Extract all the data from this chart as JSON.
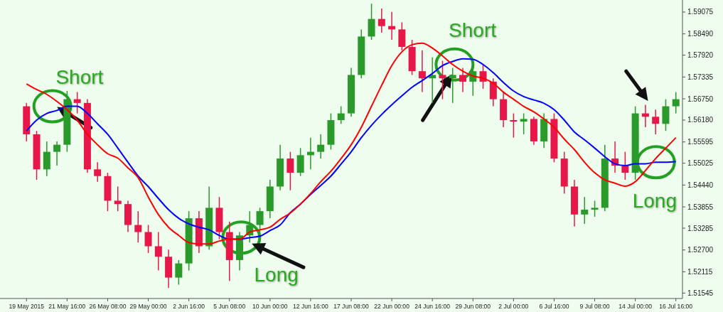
{
  "chart_data": {
    "type": "candlestick",
    "categories": [
      "19 May 2015",
      null,
      null,
      null,
      "21 May 16:00",
      null,
      null,
      null,
      "26 May 08:00",
      null,
      null,
      null,
      "29 May 00:00",
      null,
      null,
      null,
      "2 Jun 16:00",
      null,
      null,
      null,
      "5 Jun 08:00",
      null,
      null,
      null,
      "10 Jun 00:00",
      null,
      null,
      null,
      "12 Jun 16:00",
      null,
      null,
      null,
      "17 Jun 08:00",
      null,
      null,
      null,
      "22 Jun 00:00",
      null,
      null,
      null,
      "24 Jun 16:00",
      null,
      null,
      null,
      "29 Jun 08:00",
      null,
      null,
      null,
      "2 Jul 00:00",
      null,
      null,
      null,
      "6 Jul 16:00",
      null,
      null,
      null,
      "9 Jul 08:00",
      null,
      null,
      null,
      "14 Jul 00:00",
      null,
      null,
      null,
      "16 Jul 16:00"
    ],
    "ohlc": [
      [
        1.5655,
        1.5664,
        1.5561,
        1.558
      ],
      [
        1.558,
        1.5589,
        1.5458,
        1.5486
      ],
      [
        1.5486,
        1.5561,
        1.5468,
        1.5533
      ],
      [
        1.5533,
        1.5561,
        1.5496,
        1.5552
      ],
      [
        1.5552,
        1.5696,
        1.5533,
        1.5674
      ],
      [
        1.5674,
        1.5693,
        1.5636,
        1.5664
      ],
      [
        1.5664,
        1.5674,
        1.5477,
        1.5486
      ],
      [
        1.5486,
        1.5505,
        1.5453,
        1.5468
      ],
      [
        1.5468,
        1.5477,
        1.5374,
        1.5402
      ],
      [
        1.5402,
        1.544,
        1.5374,
        1.5393
      ],
      [
        1.5393,
        1.5402,
        1.5318,
        1.5337
      ],
      [
        1.5337,
        1.5374,
        1.529,
        1.5318
      ],
      [
        1.5318,
        1.5337,
        1.5262,
        1.528
      ],
      [
        1.528,
        1.5318,
        1.5215,
        1.5252
      ],
      [
        1.5252,
        1.5271,
        1.5168,
        1.5196
      ],
      [
        1.5196,
        1.5243,
        1.5177,
        1.5234
      ],
      [
        1.5234,
        1.5374,
        1.5215,
        1.5355
      ],
      [
        1.5355,
        1.5374,
        1.5262,
        1.528
      ],
      [
        1.528,
        1.544,
        1.5271,
        1.5383
      ],
      [
        1.5383,
        1.5412,
        1.5299,
        1.5318
      ],
      [
        1.5318,
        1.5346,
        1.5187,
        1.5243
      ],
      [
        1.5243,
        1.5318,
        1.5215,
        1.5309
      ],
      [
        1.5309,
        1.5374,
        1.529,
        1.5337
      ],
      [
        1.5337,
        1.5383,
        1.529,
        1.5374
      ],
      [
        1.5374,
        1.5458,
        1.5355,
        1.544
      ],
      [
        1.544,
        1.5552,
        1.543,
        1.5515
      ],
      [
        1.5515,
        1.5533,
        1.543,
        1.5477
      ],
      [
        1.5477,
        1.5543,
        1.5468,
        1.5524
      ],
      [
        1.5524,
        1.5571,
        1.5486,
        1.5533
      ],
      [
        1.5533,
        1.558,
        1.5515,
        1.5552
      ],
      [
        1.5552,
        1.5636,
        1.5539,
        1.5618
      ],
      [
        1.5618,
        1.5655,
        1.5608,
        1.5636
      ],
      [
        1.5636,
        1.5758,
        1.5627,
        1.5739
      ],
      [
        1.5739,
        1.5861,
        1.573,
        1.5842
      ],
      [
        1.5842,
        1.593,
        1.5833,
        1.5889
      ],
      [
        1.5889,
        1.5917,
        1.5852,
        1.587
      ],
      [
        1.587,
        1.5908,
        1.5833,
        1.5861
      ],
      [
        1.5861,
        1.588,
        1.5805,
        1.5814
      ],
      [
        1.5814,
        1.5833,
        1.5739,
        1.5749
      ],
      [
        1.5749,
        1.5805,
        1.5693,
        1.573
      ],
      [
        1.573,
        1.5786,
        1.5664,
        1.5739
      ],
      [
        1.5739,
        1.5777,
        1.5674,
        1.573
      ],
      [
        1.573,
        1.5758,
        1.5664,
        1.5739
      ],
      [
        1.5739,
        1.5758,
        1.5693,
        1.5721
      ],
      [
        1.5721,
        1.5777,
        1.5683,
        1.5749
      ],
      [
        1.5749,
        1.5767,
        1.5702,
        1.5721
      ],
      [
        1.5721,
        1.573,
        1.5655,
        1.5674
      ],
      [
        1.5674,
        1.5693,
        1.5599,
        1.5618
      ],
      [
        1.5618,
        1.5636,
        1.5571,
        1.5614
      ],
      [
        1.5614,
        1.5636,
        1.558,
        1.5621
      ],
      [
        1.5621,
        1.5627,
        1.5552,
        1.5561
      ],
      [
        1.5561,
        1.5636,
        1.5543,
        1.5621
      ],
      [
        1.5621,
        1.5636,
        1.5505,
        1.5515
      ],
      [
        1.5515,
        1.5533,
        1.5421,
        1.544
      ],
      [
        1.544,
        1.5458,
        1.5333,
        1.5365
      ],
      [
        1.5365,
        1.5412,
        1.534,
        1.5378
      ],
      [
        1.5378,
        1.5402,
        1.5359,
        1.5383
      ],
      [
        1.5383,
        1.5552,
        1.5374,
        1.5515
      ],
      [
        1.5515,
        1.5561,
        1.5477,
        1.5496
      ],
      [
        1.5496,
        1.5533,
        1.5458,
        1.5477
      ],
      [
        1.5477,
        1.5655,
        1.5458,
        1.5636
      ],
      [
        1.5636,
        1.5659,
        1.5599,
        1.5627
      ],
      [
        1.5627,
        1.5646,
        1.558,
        1.5608
      ],
      [
        1.5608,
        1.5674,
        1.5589,
        1.5655
      ],
      [
        1.5655,
        1.5693,
        1.5636,
        1.5674
      ]
    ],
    "colors": [
      "#e8174a",
      "#e8174a",
      "#2a9a2a",
      "#2a9a2a",
      "#2a9a2a",
      "#e8174a",
      "#e8174a",
      "#e8174a",
      "#e8174a",
      "#e8174a",
      "#e8174a",
      "#e8174a",
      "#e8174a",
      "#e8174a",
      "#e8174a",
      "#2a9a2a",
      "#2a9a2a",
      "#e8174a",
      "#2a9a2a",
      "#e8174a",
      "#e8174a",
      "#2a9a2a",
      "#2a9a2a",
      "#2a9a2a",
      "#2a9a2a",
      "#2a9a2a",
      "#e8174a",
      "#2a9a2a",
      "#2a9a2a",
      "#2a9a2a",
      "#2a9a2a",
      "#2a9a2a",
      "#2a9a2a",
      "#2a9a2a",
      "#2a9a2a",
      "#e8174a",
      "#e8174a",
      "#e8174a",
      "#e8174a",
      "#e8174a",
      "#2a9a2a",
      "#e8174a",
      "#2a9a2a",
      "#e8174a",
      "#2a9a2a",
      "#e8174a",
      "#e8174a",
      "#e8174a",
      "#e8174a",
      "#2a9a2a",
      "#e8174a",
      "#2a9a2a",
      "#e8174a",
      "#e8174a",
      "#e8174a",
      "#2a9a2a",
      "#2a9a2a",
      "#2a9a2a",
      "#e8174a",
      "#e8174a",
      "#2a9a2a",
      "#e8174a",
      "#e8174a",
      "#2a9a2a",
      "#2a9a2a"
    ],
    "series": [
      {
        "type": "line",
        "color": "#ff0000",
        "values": [
          1.5715,
          1.57,
          1.5687,
          1.5668,
          1.5646,
          1.5618,
          1.558,
          1.5552,
          1.5528,
          1.5516,
          1.549,
          1.5464,
          1.5412,
          1.5365,
          1.5331,
          1.5309,
          1.529,
          1.5286,
          1.5286,
          1.5294,
          1.5299,
          1.5299,
          1.5318,
          1.5324,
          1.5331,
          1.5352,
          1.5369,
          1.5393,
          1.5421,
          1.5453,
          1.5481,
          1.5515,
          1.5552,
          1.5599,
          1.5655,
          1.5711,
          1.5764,
          1.5801,
          1.582,
          1.5824,
          1.5811,
          1.579,
          1.5767,
          1.5749,
          1.5736,
          1.573,
          1.5717,
          1.5693,
          1.5674,
          1.5655,
          1.564,
          1.5621,
          1.5599,
          1.5567,
          1.5539,
          1.5505,
          1.5477,
          1.5458,
          1.5449,
          1.5441,
          1.5453,
          1.5483,
          1.5515,
          1.5543,
          1.5571
        ]
      },
      {
        "type": "line",
        "color": "#0000ff",
        "values": [
          1.5589,
          1.5618,
          1.5636,
          1.5644,
          1.5655,
          1.5655,
          1.5636,
          1.5608,
          1.558,
          1.5543,
          1.5505,
          1.5468,
          1.544,
          1.5408,
          1.5378,
          1.5355,
          1.534,
          1.5331,
          1.5324,
          1.5309,
          1.5299,
          1.5299,
          1.5303,
          1.5307,
          1.5322,
          1.5337,
          1.537,
          1.5393,
          1.5419,
          1.5443,
          1.5468,
          1.55,
          1.5533,
          1.5571,
          1.5604,
          1.5633,
          1.5659,
          1.5683,
          1.5706,
          1.5724,
          1.5743,
          1.5764,
          1.5775,
          1.5782,
          1.5781,
          1.5767,
          1.5745,
          1.5719,
          1.5696,
          1.5681,
          1.5672,
          1.5663,
          1.5646,
          1.5618,
          1.5586,
          1.5565,
          1.5543,
          1.552,
          1.5501,
          1.5496,
          1.5501,
          1.5501,
          1.5505,
          1.5505,
          1.5507
        ]
      }
    ],
    "ylim": [
      1.514,
      1.5936
    ],
    "yticks": [
      1.59075,
      {
        "value": 1.5849,
        "label": "1.58490"
      },
      {
        "value": 1.5792,
        "label": "1.57920"
      },
      1.57335,
      {
        "value": 1.5675,
        "label": "1.56750"
      },
      {
        "value": 1.5618,
        "label": "1.56180"
      },
      1.55595,
      1.55025,
      {
        "value": 1.5444,
        "label": "1.54440"
      },
      1.53855,
      1.53285,
      {
        "value": 1.527,
        "label": "1.52700"
      },
      1.52115,
      1.51545
    ],
    "annotations": [
      {
        "text": "Short",
        "y": 1.5655
      },
      {
        "text": "Short",
        "y": 1.5767
      },
      "Long",
      {
        "text": "Long",
        "y": 1.5505
      }
    ],
    "grid": false,
    "legend": false
  }
}
